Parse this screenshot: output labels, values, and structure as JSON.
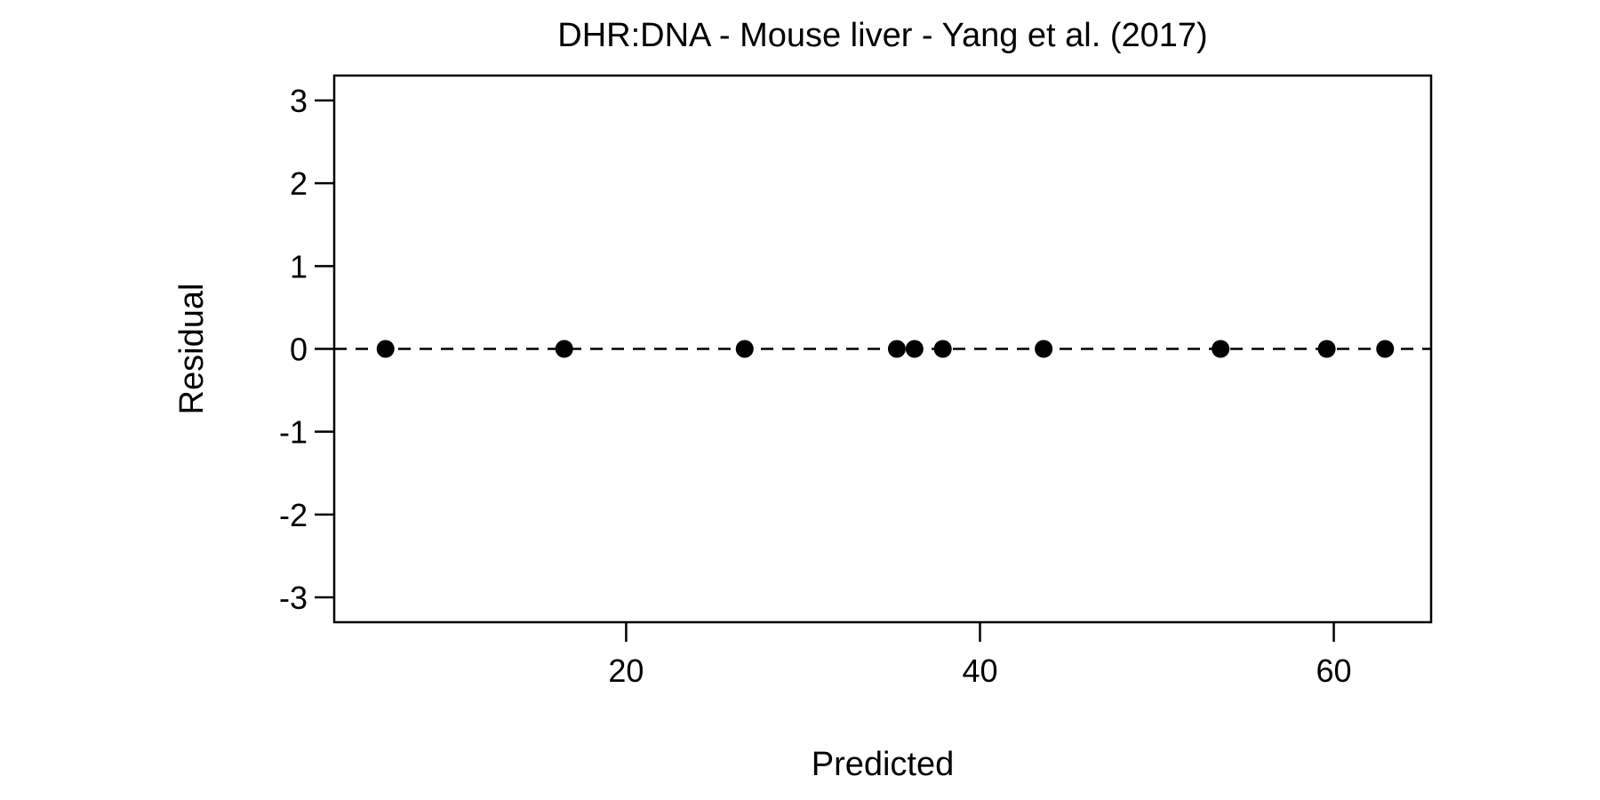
{
  "chart_data": {
    "type": "scatter",
    "title": "DHR:DNA - Mouse liver - Yang et al. (2017)",
    "xlabel": "Predicted",
    "ylabel": "Residual",
    "xlim": [
      3.5,
      65.5
    ],
    "ylim": [
      -3.3,
      3.3
    ],
    "xticks": [
      20,
      40,
      60
    ],
    "yticks": [
      -3,
      -2,
      -1,
      0,
      1,
      2,
      3
    ],
    "reference_line": {
      "y": 0,
      "style": "dashed"
    },
    "points": [
      {
        "x": 6.4,
        "y": 0
      },
      {
        "x": 16.5,
        "y": 0
      },
      {
        "x": 26.7,
        "y": 0
      },
      {
        "x": 35.3,
        "y": 0
      },
      {
        "x": 36.3,
        "y": 0
      },
      {
        "x": 37.9,
        "y": 0
      },
      {
        "x": 43.6,
        "y": 0
      },
      {
        "x": 53.6,
        "y": 0
      },
      {
        "x": 59.6,
        "y": 0
      },
      {
        "x": 62.9,
        "y": 0
      }
    ],
    "colors": {
      "points": "#000000",
      "line": "#000000"
    },
    "grid": false,
    "legend": "none"
  }
}
